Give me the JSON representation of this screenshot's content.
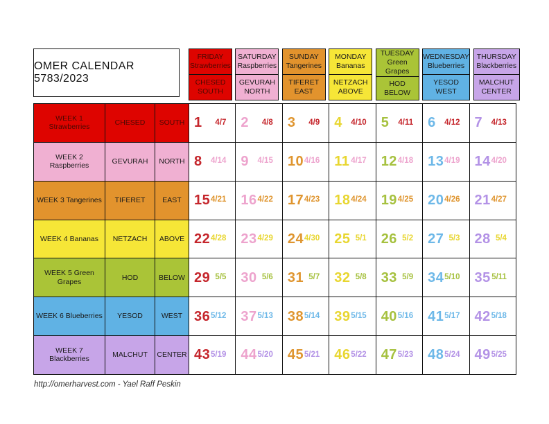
{
  "title": "OMER CALENDAR 5783/2023",
  "footer": "http://omerharvest.com - Yael Raff Peskin",
  "columns": [
    {
      "day": "FRIDAY",
      "fruit": "Strawberries",
      "sefirah": "CHESED",
      "direction": "SOUTH",
      "color": "#de0400",
      "accent": "#c5262c",
      "text": "#4d0802"
    },
    {
      "day": "SATURDAY",
      "fruit": "Raspberries",
      "sefirah": "GEVURAH",
      "direction": "NORTH",
      "color": "#f0b0d2",
      "accent": "#eda3cd",
      "text": "#1a1a1a"
    },
    {
      "day": "SUNDAY",
      "fruit": "Tangerines",
      "sefirah": "TIFERET",
      "direction": "EAST",
      "color": "#e2932d",
      "accent": "#df952f",
      "text": "#1a1a1a"
    },
    {
      "day": "MONDAY",
      "fruit": "Bananas",
      "sefirah": "NETZACH",
      "direction": "ABOVE",
      "color": "#f6e637",
      "accent": "#e8d630",
      "text": "#1a1a1a"
    },
    {
      "day": "TUESDAY",
      "fruit": "Green Grapes",
      "sefirah": "HOD",
      "direction": "BELOW",
      "color": "#aac437",
      "accent": "#a6c13f",
      "text": "#1a1a1a"
    },
    {
      "day": "WEDNESDAY",
      "fruit": "Blueberries",
      "sefirah": "YESOD",
      "direction": "WEST",
      "color": "#60b2e4",
      "accent": "#6db8e8",
      "text": "#1a1a1a"
    },
    {
      "day": "THURSDAY",
      "fruit": "Blackberries",
      "sefirah": "MALCHUT",
      "direction": "CENTER",
      "color": "#c7a5e8",
      "accent": "#b392e6",
      "text": "#1a1a1a"
    }
  ],
  "weeks": [
    {
      "label": "WEEK 1 Strawberries",
      "sefirah": "CHESED",
      "direction": "SOUTH",
      "color": "#de0400",
      "accent": "#c5262c",
      "text": "#4d0802",
      "days": [
        {
          "n": "1",
          "date": "4/7"
        },
        {
          "n": "2",
          "date": "4/8"
        },
        {
          "n": "3",
          "date": "4/9"
        },
        {
          "n": "4",
          "date": "4/10"
        },
        {
          "n": "5",
          "date": "4/11"
        },
        {
          "n": "6",
          "date": "4/12"
        },
        {
          "n": "7",
          "date": "4/13"
        }
      ]
    },
    {
      "label": "WEEK 2 Raspberries",
      "sefirah": "GEVURAH",
      "direction": "NORTH",
      "color": "#f0b0d2",
      "accent": "#eda3cd",
      "text": "#1a1a1a",
      "days": [
        {
          "n": "8",
          "date": "4/14"
        },
        {
          "n": "9",
          "date": "4/15"
        },
        {
          "n": "10",
          "date": "4/16"
        },
        {
          "n": "11",
          "date": "4/17"
        },
        {
          "n": "12",
          "date": "4/18"
        },
        {
          "n": "13",
          "date": "4/19"
        },
        {
          "n": "14",
          "date": "4/20"
        }
      ]
    },
    {
      "label": "WEEK 3  Tangerines",
      "sefirah": "TIFERET",
      "direction": "EAST",
      "color": "#e2932d",
      "accent": "#df952f",
      "text": "#1a1a1a",
      "days": [
        {
          "n": "15",
          "date": "4/21"
        },
        {
          "n": "16",
          "date": "4/22"
        },
        {
          "n": "17",
          "date": "4/23"
        },
        {
          "n": "18",
          "date": "4/24"
        },
        {
          "n": "19",
          "date": "4/25"
        },
        {
          "n": "20",
          "date": "4/26"
        },
        {
          "n": "21",
          "date": "4/27"
        }
      ]
    },
    {
      "label": "WEEK 4 Bananas",
      "sefirah": "NETZACH",
      "direction": "ABOVE",
      "color": "#f6e637",
      "accent": "#e8d630",
      "text": "#1a1a1a",
      "days": [
        {
          "n": "22",
          "date": "4/28"
        },
        {
          "n": "23",
          "date": "4/29"
        },
        {
          "n": "24",
          "date": "4/30"
        },
        {
          "n": "25",
          "date": "5/1"
        },
        {
          "n": "26",
          "date": "5/2"
        },
        {
          "n": "27",
          "date": "5/3"
        },
        {
          "n": "28",
          "date": "5/4"
        }
      ]
    },
    {
      "label": "WEEK 5  Green Grapes",
      "sefirah": "HOD",
      "direction": "BELOW",
      "color": "#aac437",
      "accent": "#a6c13f",
      "text": "#1a1a1a",
      "days": [
        {
          "n": "29",
          "date": "5/5"
        },
        {
          "n": "30",
          "date": "5/6"
        },
        {
          "n": "31",
          "date": "5/7"
        },
        {
          "n": "32",
          "date": "5/8"
        },
        {
          "n": "33",
          "date": "5/9"
        },
        {
          "n": "34",
          "date": "5/10"
        },
        {
          "n": "35",
          "date": "5/11"
        }
      ]
    },
    {
      "label": "WEEK 6  Blueberries",
      "sefirah": "YESOD",
      "direction": "WEST",
      "color": "#60b2e4",
      "accent": "#6db8e8",
      "text": "#1a1a1a",
      "days": [
        {
          "n": "36",
          "date": "5/12"
        },
        {
          "n": "37",
          "date": "5/13"
        },
        {
          "n": "38",
          "date": "5/14"
        },
        {
          "n": "39",
          "date": "5/15"
        },
        {
          "n": "40",
          "date": "5/16"
        },
        {
          "n": "41",
          "date": "5/17"
        },
        {
          "n": "42",
          "date": "5/18"
        }
      ]
    },
    {
      "label": "WEEK 7  Blackberries",
      "sefirah": "MALCHUT",
      "direction": "CENTER",
      "color": "#c7a5e8",
      "accent": "#b392e6",
      "text": "#1a1a1a",
      "days": [
        {
          "n": "43",
          "date": "5/19"
        },
        {
          "n": "44",
          "date": "5/20"
        },
        {
          "n": "45",
          "date": "5/21"
        },
        {
          "n": "46",
          "date": "5/22"
        },
        {
          "n": "47",
          "date": "5/23"
        },
        {
          "n": "48",
          "date": "5/24"
        },
        {
          "n": "49",
          "date": "5/25"
        }
      ]
    }
  ]
}
